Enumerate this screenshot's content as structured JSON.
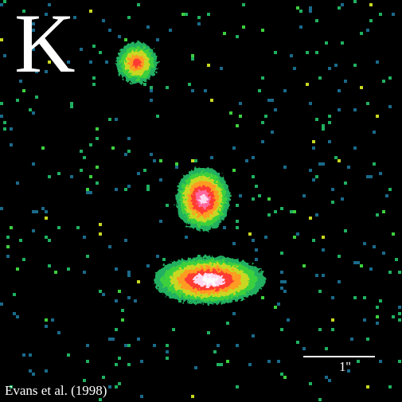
{
  "image": {
    "band_label": "K",
    "scale_bar_label": "1''",
    "credit": "Evans et al. (1998)",
    "colormap": [
      "#1a6a8a",
      "#20b060",
      "#3ed03e",
      "#c8d820",
      "#ff9a20",
      "#ff3a30",
      "#ff6aa0",
      "#ffd8f0",
      "#ffffff"
    ]
  }
}
